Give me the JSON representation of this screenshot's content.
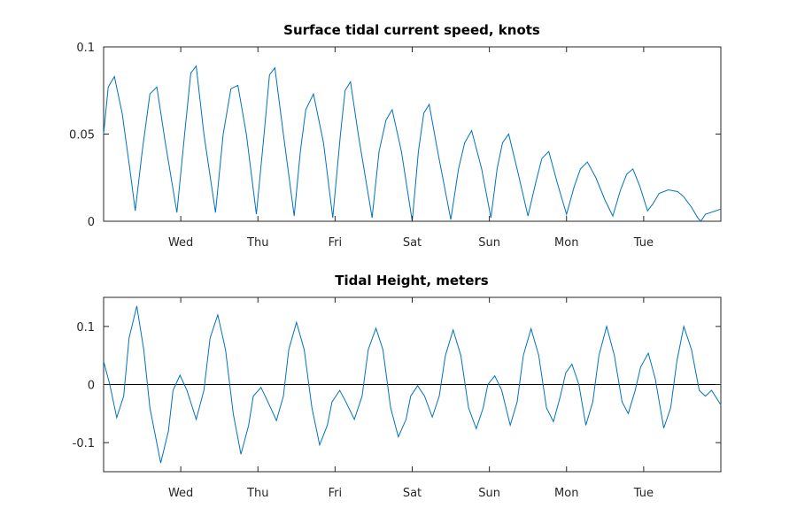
{
  "colors": {
    "series": "#0072BD",
    "axis": "#262626",
    "zero_line": "#000000"
  },
  "chart_data": [
    {
      "type": "line",
      "title": "Surface tidal current speed, knots",
      "xlabel": "",
      "ylabel": "",
      "xlim": [
        0,
        8
      ],
      "ylim": [
        0,
        0.1
      ],
      "x_ticks": [
        {
          "value": 1,
          "label": "Wed"
        },
        {
          "value": 2,
          "label": "Thu"
        },
        {
          "value": 3,
          "label": "Fri"
        },
        {
          "value": 4,
          "label": "Sat"
        },
        {
          "value": 5,
          "label": "Sun"
        },
        {
          "value": 6,
          "label": "Mon"
        },
        {
          "value": 7,
          "label": "Tue"
        }
      ],
      "y_ticks": [
        {
          "value": 0,
          "label": "0"
        },
        {
          "value": 0.05,
          "label": "0.05"
        },
        {
          "value": 0.1,
          "label": "0.1"
        }
      ],
      "grid": false,
      "series": [
        {
          "values": [
            [
              0.0,
              0.05
            ],
            [
              0.06,
              0.077
            ],
            [
              0.14,
              0.083
            ],
            [
              0.24,
              0.062
            ],
            [
              0.34,
              0.03
            ],
            [
              0.41,
              0.006
            ],
            [
              0.5,
              0.04
            ],
            [
              0.6,
              0.073
            ],
            [
              0.69,
              0.077
            ],
            [
              0.8,
              0.045
            ],
            [
              0.95,
              0.005
            ],
            [
              1.05,
              0.05
            ],
            [
              1.13,
              0.085
            ],
            [
              1.2,
              0.089
            ],
            [
              1.3,
              0.05
            ],
            [
              1.45,
              0.005
            ],
            [
              1.55,
              0.05
            ],
            [
              1.65,
              0.076
            ],
            [
              1.74,
              0.078
            ],
            [
              1.85,
              0.05
            ],
            [
              1.98,
              0.004
            ],
            [
              2.08,
              0.05
            ],
            [
              2.15,
              0.084
            ],
            [
              2.22,
              0.088
            ],
            [
              2.33,
              0.05
            ],
            [
              2.47,
              0.003
            ],
            [
              2.55,
              0.04
            ],
            [
              2.62,
              0.064
            ],
            [
              2.72,
              0.073
            ],
            [
              2.85,
              0.045
            ],
            [
              2.97,
              0.002
            ],
            [
              3.07,
              0.05
            ],
            [
              3.13,
              0.075
            ],
            [
              3.2,
              0.08
            ],
            [
              3.3,
              0.05
            ],
            [
              3.48,
              0.002
            ],
            [
              3.57,
              0.04
            ],
            [
              3.66,
              0.058
            ],
            [
              3.74,
              0.064
            ],
            [
              3.86,
              0.04
            ],
            [
              4.0,
              0.0
            ],
            [
              4.08,
              0.04
            ],
            [
              4.15,
              0.062
            ],
            [
              4.22,
              0.067
            ],
            [
              4.33,
              0.04
            ],
            [
              4.5,
              0.001
            ],
            [
              4.6,
              0.03
            ],
            [
              4.68,
              0.045
            ],
            [
              4.77,
              0.052
            ],
            [
              4.9,
              0.03
            ],
            [
              5.02,
              0.002
            ],
            [
              5.1,
              0.03
            ],
            [
              5.17,
              0.045
            ],
            [
              5.25,
              0.05
            ],
            [
              5.37,
              0.028
            ],
            [
              5.5,
              0.003
            ],
            [
              5.6,
              0.022
            ],
            [
              5.68,
              0.036
            ],
            [
              5.77,
              0.04
            ],
            [
              5.88,
              0.022
            ],
            [
              6.0,
              0.004
            ],
            [
              6.1,
              0.02
            ],
            [
              6.18,
              0.03
            ],
            [
              6.27,
              0.034
            ],
            [
              6.38,
              0.025
            ],
            [
              6.5,
              0.012
            ],
            [
              6.6,
              0.003
            ],
            [
              6.7,
              0.018
            ],
            [
              6.78,
              0.027
            ],
            [
              6.86,
              0.03
            ],
            [
              6.95,
              0.02
            ],
            [
              7.05,
              0.006
            ],
            [
              7.12,
              0.01
            ],
            [
              7.2,
              0.016
            ],
            [
              7.32,
              0.018
            ],
            [
              7.44,
              0.017
            ],
            [
              7.52,
              0.014
            ],
            [
              7.62,
              0.008
            ],
            [
              7.7,
              0.002
            ],
            [
              7.74,
              0.0
            ],
            [
              7.8,
              0.004
            ],
            [
              8.0,
              0.007
            ]
          ]
        }
      ]
    },
    {
      "type": "line",
      "title": "Tidal Height, meters",
      "xlabel": "",
      "ylabel": "",
      "xlim": [
        0,
        8
      ],
      "ylim": [
        -0.15,
        0.15
      ],
      "x_ticks": [
        {
          "value": 1,
          "label": "Wed"
        },
        {
          "value": 2,
          "label": "Thu"
        },
        {
          "value": 3,
          "label": "Fri"
        },
        {
          "value": 4,
          "label": "Sat"
        },
        {
          "value": 5,
          "label": "Sun"
        },
        {
          "value": 6,
          "label": "Mon"
        },
        {
          "value": 7,
          "label": "Tue"
        }
      ],
      "y_ticks": [
        {
          "value": -0.1,
          "label": "-0.1"
        },
        {
          "value": 0,
          "label": "0"
        },
        {
          "value": 0.1,
          "label": "0.1"
        }
      ],
      "grid": false,
      "reference_line": 0,
      "series": [
        {
          "values": [
            [
              0.0,
              0.04
            ],
            [
              0.08,
              0.0
            ],
            [
              0.17,
              -0.057
            ],
            [
              0.26,
              -0.02
            ],
            [
              0.33,
              0.08
            ],
            [
              0.43,
              0.135
            ],
            [
              0.52,
              0.06
            ],
            [
              0.6,
              -0.04
            ],
            [
              0.74,
              -0.135
            ],
            [
              0.84,
              -0.08
            ],
            [
              0.9,
              -0.01
            ],
            [
              0.99,
              0.016
            ],
            [
              1.08,
              -0.01
            ],
            [
              1.2,
              -0.06
            ],
            [
              1.3,
              -0.01
            ],
            [
              1.38,
              0.08
            ],
            [
              1.48,
              0.12
            ],
            [
              1.58,
              0.06
            ],
            [
              1.68,
              -0.05
            ],
            [
              1.78,
              -0.12
            ],
            [
              1.88,
              -0.07
            ],
            [
              1.94,
              -0.02
            ],
            [
              2.04,
              -0.005
            ],
            [
              2.13,
              -0.03
            ],
            [
              2.24,
              -0.062
            ],
            [
              2.33,
              -0.02
            ],
            [
              2.4,
              0.06
            ],
            [
              2.5,
              0.107
            ],
            [
              2.6,
              0.06
            ],
            [
              2.7,
              -0.04
            ],
            [
              2.8,
              -0.104
            ],
            [
              2.9,
              -0.07
            ],
            [
              2.96,
              -0.03
            ],
            [
              3.06,
              -0.01
            ],
            [
              3.14,
              -0.03
            ],
            [
              3.25,
              -0.06
            ],
            [
              3.35,
              -0.02
            ],
            [
              3.43,
              0.06
            ],
            [
              3.53,
              0.097
            ],
            [
              3.62,
              0.06
            ],
            [
              3.72,
              -0.04
            ],
            [
              3.82,
              -0.09
            ],
            [
              3.92,
              -0.06
            ],
            [
              3.98,
              -0.02
            ],
            [
              4.07,
              -0.002
            ],
            [
              4.16,
              -0.02
            ],
            [
              4.26,
              -0.056
            ],
            [
              4.35,
              -0.02
            ],
            [
              4.43,
              0.05
            ],
            [
              4.53,
              0.094
            ],
            [
              4.63,
              0.05
            ],
            [
              4.73,
              -0.04
            ],
            [
              4.83,
              -0.076
            ],
            [
              4.92,
              -0.04
            ],
            [
              4.98,
              0.0
            ],
            [
              5.07,
              0.015
            ],
            [
              5.16,
              -0.01
            ],
            [
              5.27,
              -0.07
            ],
            [
              5.36,
              -0.03
            ],
            [
              5.44,
              0.05
            ],
            [
              5.54,
              0.096
            ],
            [
              5.64,
              0.05
            ],
            [
              5.74,
              -0.04
            ],
            [
              5.83,
              -0.064
            ],
            [
              5.92,
              -0.02
            ],
            [
              5.99,
              0.02
            ],
            [
              6.07,
              0.035
            ],
            [
              6.16,
              0.0
            ],
            [
              6.25,
              -0.07
            ],
            [
              6.34,
              -0.03
            ],
            [
              6.42,
              0.05
            ],
            [
              6.52,
              0.1
            ],
            [
              6.62,
              0.05
            ],
            [
              6.72,
              -0.03
            ],
            [
              6.8,
              -0.05
            ],
            [
              6.89,
              -0.01
            ],
            [
              6.96,
              0.03
            ],
            [
              7.06,
              0.054
            ],
            [
              7.15,
              0.01
            ],
            [
              7.26,
              -0.075
            ],
            [
              7.35,
              -0.04
            ],
            [
              7.43,
              0.04
            ],
            [
              7.52,
              0.1
            ],
            [
              7.62,
              0.06
            ],
            [
              7.72,
              -0.01
            ],
            [
              7.8,
              -0.02
            ],
            [
              7.88,
              -0.01
            ],
            [
              8.0,
              -0.035
            ]
          ]
        }
      ]
    }
  ]
}
